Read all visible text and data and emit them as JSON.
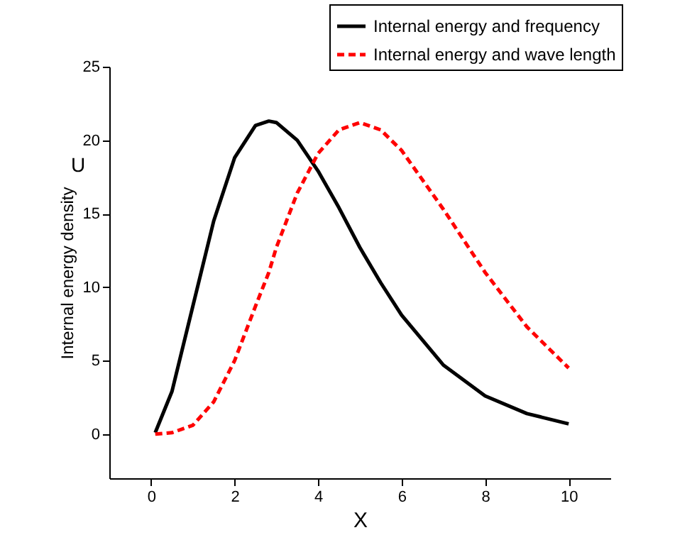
{
  "chart_data": {
    "type": "line",
    "xlabel": "X",
    "ylabel": "Internal energy density",
    "annotations": [
      "U"
    ],
    "xlim": [
      -1,
      11
    ],
    "ylim": [
      -3,
      25
    ],
    "xticks": [
      0,
      2,
      4,
      6,
      8,
      10
    ],
    "yticks": [
      0,
      5,
      10,
      15,
      20,
      25
    ],
    "grid": false,
    "legend": "top right",
    "marker": "none",
    "x": [
      0.1,
      0.5,
      1,
      1.5,
      2,
      2.5,
      2.82,
      3,
      3.5,
      4,
      4.5,
      5,
      5.5,
      6,
      7,
      8,
      9,
      10
    ],
    "series": [
      {
        "name": "Internal energy and frequency",
        "color": "#000000",
        "line_style": "solid",
        "values": [
          0.1,
          2.9,
          8.7,
          14.5,
          18.8,
          21.0,
          21.3,
          21.2,
          20.0,
          17.9,
          15.4,
          12.7,
          10.3,
          8.1,
          4.7,
          2.6,
          1.4,
          0.7
        ]
      },
      {
        "name": "Internal energy and wave length",
        "color": "#ff0000",
        "line_style": "dashed",
        "values": [
          0.0,
          0.1,
          0.6,
          2.2,
          5.0,
          8.7,
          11.0,
          12.7,
          16.4,
          19.1,
          20.7,
          21.2,
          20.7,
          19.3,
          15.3,
          11.0,
          7.3,
          4.5
        ]
      }
    ]
  }
}
